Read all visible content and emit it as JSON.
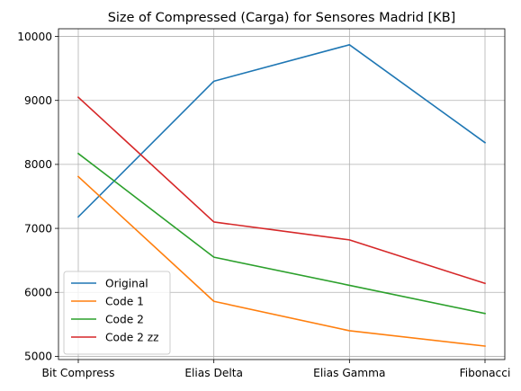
{
  "chart_data": {
    "type": "line",
    "title": "Size of Compressed (Carga) for Sensores Madrid [KB]",
    "xlabel": "",
    "ylabel": "",
    "categories": [
      "Bit Compress",
      "Elias Delta",
      "Elias Gamma",
      "Fibonacci"
    ],
    "ylim": [
      4950,
      10120
    ],
    "yticks": [
      5000,
      6000,
      7000,
      8000,
      9000,
      10000
    ],
    "grid": true,
    "legend": "lower-left",
    "series": [
      {
        "name": "Original",
        "color": "#1f77b4",
        "values": [
          7180,
          9300,
          9870,
          8340
        ]
      },
      {
        "name": "Code 1",
        "color": "#ff7f0e",
        "values": [
          7810,
          5860,
          5400,
          5160
        ]
      },
      {
        "name": "Code 2",
        "color": "#2ca02c",
        "values": [
          8170,
          6550,
          6110,
          5670
        ]
      },
      {
        "name": "Code 2 zz",
        "color": "#d62728",
        "values": [
          9050,
          7100,
          6820,
          6140
        ]
      }
    ]
  }
}
